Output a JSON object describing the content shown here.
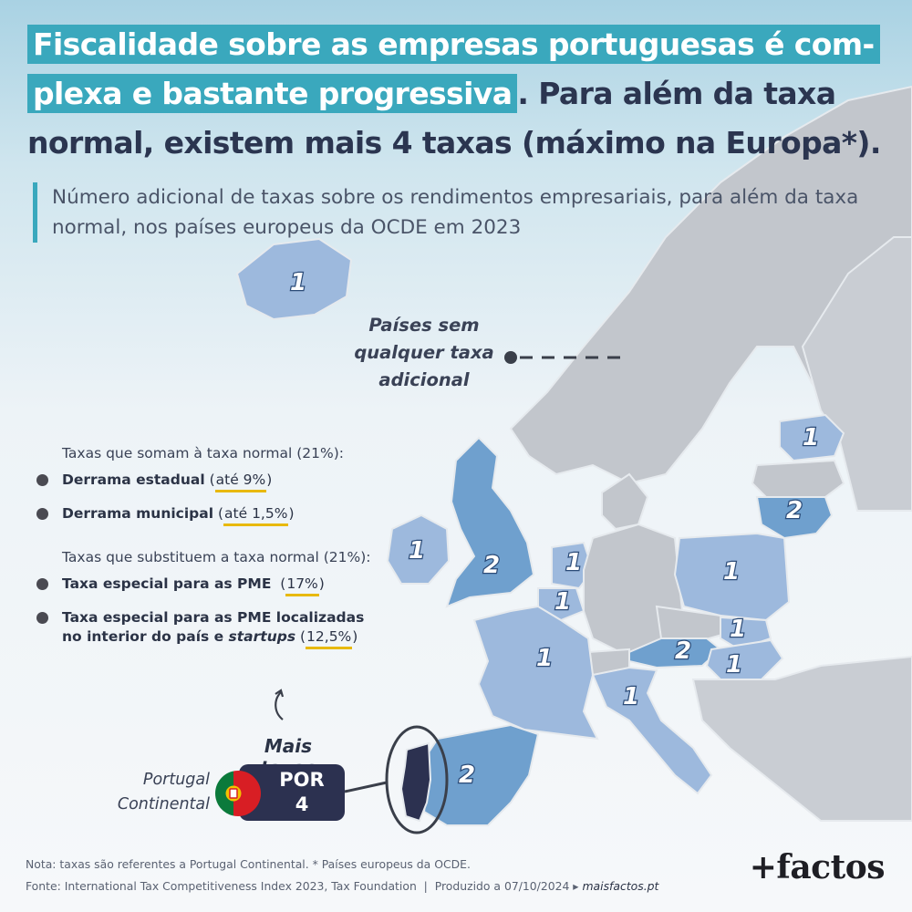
{
  "title": {
    "highlight_1": "Fiscalidade sobre as empresas portuguesas é com-",
    "highlight_2": "plexa e bastante progressiva",
    "rest_1": ". Para além da taxa",
    "rest_2": "normal, existem mais 4 taxas (máximo na Europa*)."
  },
  "subtitle": "Número adicional de taxas sobre os rendimentos empresariais, para além da taxa normal, nos países europeus da OCDE em 2023",
  "callout": "Países sem qualquer taxa adicional",
  "legend": {
    "group1_title": "Taxas que somam à taxa normal (21%):",
    "group1": [
      {
        "name": "Derrama estadual",
        "open": " (",
        "rate": "até 9%",
        "close": ")"
      },
      {
        "name": "Derrama municipal",
        "open": " (",
        "rate": "até 1,5%",
        "close": ")"
      }
    ],
    "group2_title": "Taxas que substituem a taxa normal (21%):",
    "group2": [
      {
        "name": "Taxa especial para as PME",
        "open": "  (",
        "rate": "17%",
        "close": ")"
      },
      {
        "name": "Taxa especial para as PME localizadas no interior do país e ",
        "name_em": "startups",
        "open": " (",
        "rate": "12,5%",
        "close": ")"
      }
    ]
  },
  "portugal": {
    "more_taxes": "Mais taxas",
    "label": "Portugal Continental",
    "code": "POR",
    "value": "4"
  },
  "colors": {
    "none": "#c2c6cc",
    "one": "#9db9dd",
    "two": "#6fa0ce",
    "accent": "#3aa8bd",
    "badge": "#2c3150",
    "underline": "#e8b90d"
  },
  "map_values": [
    {
      "country": "Iceland",
      "value": "1"
    },
    {
      "country": "Ireland",
      "value": "1"
    },
    {
      "country": "United Kingdom",
      "value": "2"
    },
    {
      "country": "Netherlands",
      "value": "1"
    },
    {
      "country": "Belgium",
      "value": "1"
    },
    {
      "country": "France",
      "value": "1"
    },
    {
      "country": "Spain",
      "value": "2"
    },
    {
      "country": "Italy",
      "value": "1"
    },
    {
      "country": "Austria",
      "value": "2"
    },
    {
      "country": "Slovakia",
      "value": "1"
    },
    {
      "country": "Hungary",
      "value": "1"
    },
    {
      "country": "Poland",
      "value": "1"
    },
    {
      "country": "Lithuania",
      "value": "2"
    },
    {
      "country": "Estonia",
      "value": "1"
    }
  ],
  "footer": {
    "note": "Nota: taxas são referentes a Portugal Continental. * Países europeus da OCDE.",
    "source": "Fonte: International Tax Competitiveness Index 2023, Tax Foundation  |  Produzido a 07/10/2024 ▸ ",
    "site": "maisfactos.pt"
  },
  "logo": "+factos"
}
